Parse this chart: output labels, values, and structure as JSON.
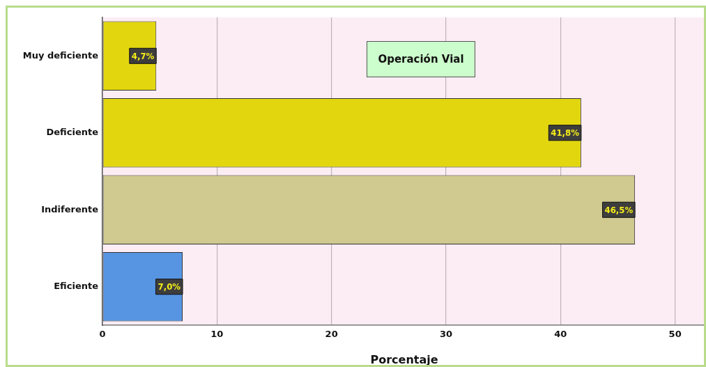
{
  "chart_data": {
    "type": "bar",
    "orientation": "horizontal",
    "title": "Operación Vial",
    "xlabel": "Porcentaje",
    "categories": [
      "Muy deficiente",
      "Deficiente",
      "Indiferente",
      "Eficiente"
    ],
    "values": [
      4.7,
      41.8,
      46.5,
      7.0
    ],
    "colors": [
      "#e2d70f",
      "#e2d70f",
      "#d0c990",
      "#5795e3"
    ],
    "value_labels": [
      "4,7%",
      "41,8%",
      "46,5%",
      "7,0%"
    ],
    "xlim": [
      0,
      52.7
    ],
    "xticks": [
      0,
      10,
      20,
      30,
      40,
      50
    ],
    "grid": "x",
    "legend": false
  }
}
